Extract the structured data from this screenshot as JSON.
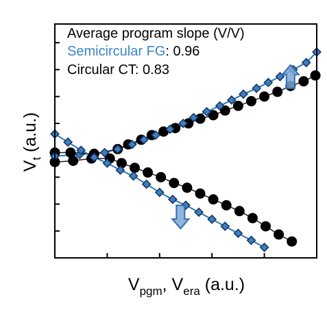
{
  "chart_data": {
    "type": "scatter",
    "ylabel_main": "V",
    "ylabel_sub": "t",
    "ylabel_unit": " (a.u.)",
    "xlabel_a": "V",
    "xlabel_a_sub": "pgm",
    "xlabel_sep": ", V",
    "xlabel_b_sub": "era",
    "xlabel_unit": " (a.u.)",
    "annotation": {
      "header": "Average program slope (V/V)",
      "fg_name": "Semicircular FG",
      "fg_value": ": 0.96",
      "ct_name": "Circular CT",
      "ct_value": ": 0.83"
    },
    "xlim": [
      0,
      10
    ],
    "ylim": [
      0,
      10
    ],
    "ticks_x": [
      2,
      4,
      6,
      8
    ],
    "ticks_y": [
      1.15,
      2.3,
      3.45,
      4.6,
      5.75,
      6.9,
      8.05,
      9.2
    ],
    "series": [
      {
        "key": "fg_program",
        "style": "fg",
        "x": [
          0,
          0.95,
          1.9,
          2.4,
          2.95,
          3.4,
          3.85,
          4.4,
          4.9,
          5.3,
          5.8,
          6.3,
          6.75,
          7.2,
          7.7,
          8.15,
          8.6,
          9.1,
          9.6,
          10.0
        ],
        "y": [
          4.35,
          4.42,
          4.5,
          4.65,
          4.85,
          5.05,
          5.25,
          5.5,
          5.75,
          6.0,
          6.25,
          6.5,
          6.75,
          7.0,
          7.25,
          7.5,
          7.75,
          8.05,
          8.35,
          8.8
        ]
      },
      {
        "key": "ct_program",
        "style": "ct",
        "x": [
          0,
          0.6,
          1.5,
          2.4,
          2.8,
          3.3,
          3.7,
          4.15,
          4.6,
          5.1,
          5.55,
          6.05,
          6.5,
          7.0,
          7.5,
          8.0,
          8.5,
          9.0,
          9.5,
          9.95
        ],
        "y": [
          4.5,
          4.5,
          4.45,
          4.65,
          4.85,
          5.05,
          5.25,
          5.4,
          5.55,
          5.75,
          5.95,
          6.1,
          6.3,
          6.5,
          6.7,
          6.9,
          7.1,
          7.35,
          7.55,
          7.8
        ]
      },
      {
        "key": "fg_erase",
        "style": "fg",
        "x": [
          0,
          0.5,
          1.0,
          1.5,
          2.0,
          2.5,
          3.0,
          3.5,
          4.0,
          4.5,
          5.0,
          5.5,
          6.0,
          6.5,
          7.0,
          7.5,
          8.0
        ],
        "y": [
          5.3,
          4.95,
          4.6,
          4.3,
          4.05,
          3.75,
          3.5,
          3.15,
          2.8,
          2.5,
          2.25,
          1.95,
          1.65,
          1.35,
          1.05,
          0.75,
          0.45
        ]
      },
      {
        "key": "ct_erase",
        "style": "ct",
        "x": [
          0,
          0.7,
          1.4,
          2.1,
          2.55,
          3.05,
          3.55,
          4.05,
          4.55,
          5.05,
          5.55,
          6.05,
          6.55,
          7.05,
          7.55,
          8.05,
          8.55,
          9.05
        ],
        "y": [
          4.1,
          4.15,
          4.25,
          4.25,
          4.05,
          3.85,
          3.65,
          3.45,
          3.2,
          3.0,
          2.75,
          2.5,
          2.25,
          2.0,
          1.7,
          1.35,
          1.0,
          0.7
        ]
      }
    ],
    "colors": {
      "fg_line": "#2f74b8",
      "fg_marker_fill": "#3d7fc4",
      "fg_marker_stroke": "#14385f",
      "fg_text": "#3a86c8",
      "ct_marker": "#000000",
      "ct_line": "#1a1a1a",
      "arrow_fill": "#7fa8d6",
      "arrow_stroke": "#2f6fb0"
    },
    "arrows": [
      {
        "direction": "up",
        "x": 9.0,
        "y": 7.75
      },
      {
        "direction": "down",
        "x": 4.8,
        "y": 1.75
      }
    ]
  }
}
